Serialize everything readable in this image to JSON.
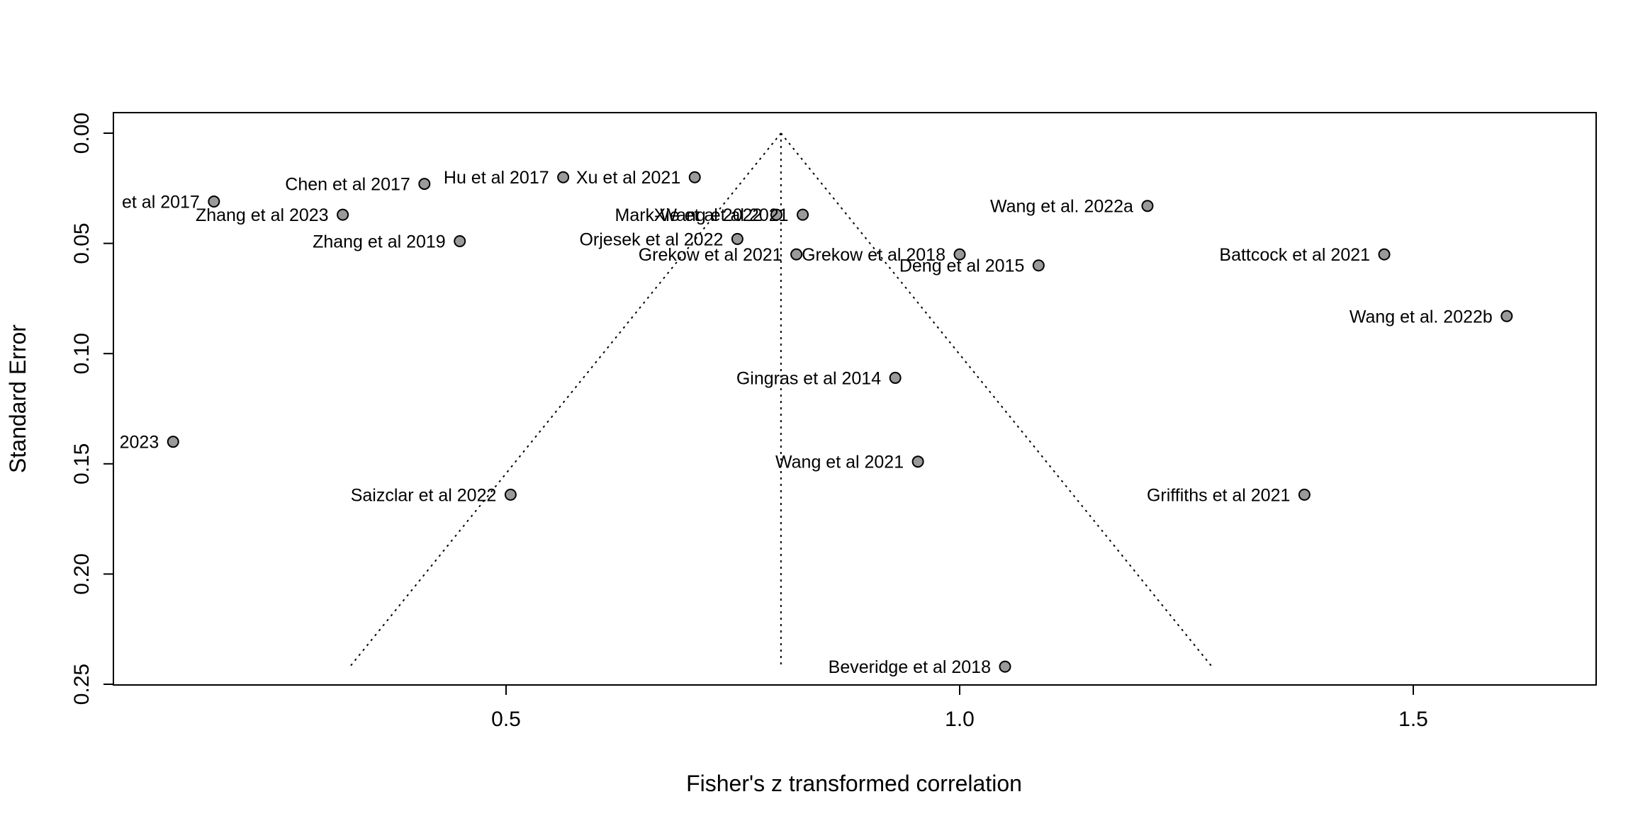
{
  "chart_data": {
    "type": "scatter",
    "title": "",
    "xlabel": "Fisher's z transformed correlation",
    "ylabel": "Standard Error",
    "xlim": [
      0.07,
      1.7
    ],
    "ylim": [
      0.0,
      0.25
    ],
    "y_reversed": true,
    "x_ticks": [
      0.5,
      1.0,
      1.5
    ],
    "x_tick_labels": [
      "0.5",
      "1.0",
      "1.5"
    ],
    "y_ticks": [
      0.0,
      0.05,
      0.1,
      0.15,
      0.2,
      0.25
    ],
    "y_tick_labels": [
      "0.00",
      "0.05",
      "0.10",
      "0.15",
      "0.20",
      "0.25"
    ],
    "grid": false,
    "funnel": {
      "center": 0.803,
      "se_max": 0.242,
      "left_at_max": 0.328,
      "right_at_max": 1.278
    },
    "points": [
      {
        "label": "Chen et al 2017",
        "x": 0.41,
        "y": 0.023
      },
      {
        "label": "Hu et al 2017",
        "x": 0.563,
        "y": 0.02
      },
      {
        "label": "Xu et al 2021",
        "x": 0.708,
        "y": 0.02
      },
      {
        "label": "et al 2017",
        "x": 0.178,
        "y": 0.031
      },
      {
        "label": "Zhang et al 2023",
        "x": 0.32,
        "y": 0.037
      },
      {
        "label": "Zhang et al 2019",
        "x": 0.449,
        "y": 0.049
      },
      {
        "label": "Xie et al 2022",
        "x": 0.798,
        "y": 0.037
      },
      {
        "label": "Mark-Wang et al 2021",
        "x": 0.827,
        "y": 0.037
      },
      {
        "label": "Orjesek et al 2022",
        "x": 0.755,
        "y": 0.048
      },
      {
        "label": "Grekow et al 2021",
        "x": 0.82,
        "y": 0.055
      },
      {
        "label": "Grekow et al 2018",
        "x": 1.0,
        "y": 0.055
      },
      {
        "label": "Deng et al 2015",
        "x": 1.087,
        "y": 0.06
      },
      {
        "label": "Wang et al. 2022a",
        "x": 1.207,
        "y": 0.033
      },
      {
        "label": "Battcock et al 2021",
        "x": 1.468,
        "y": 0.055
      },
      {
        "label": "Wang et al. 2022b",
        "x": 1.603,
        "y": 0.083
      },
      {
        "label": "Gingras et al 2014",
        "x": 0.929,
        "y": 0.111
      },
      {
        "label": "2023",
        "x": 0.133,
        "y": 0.14
      },
      {
        "label": "Wang et al 2021",
        "x": 0.954,
        "y": 0.149
      },
      {
        "label": "Saizclar et al 2022",
        "x": 0.505,
        "y": 0.164
      },
      {
        "label": "Griffiths et al 2021",
        "x": 1.38,
        "y": 0.164
      },
      {
        "label": "Beveridge et al 2018",
        "x": 1.05,
        "y": 0.242
      }
    ]
  }
}
